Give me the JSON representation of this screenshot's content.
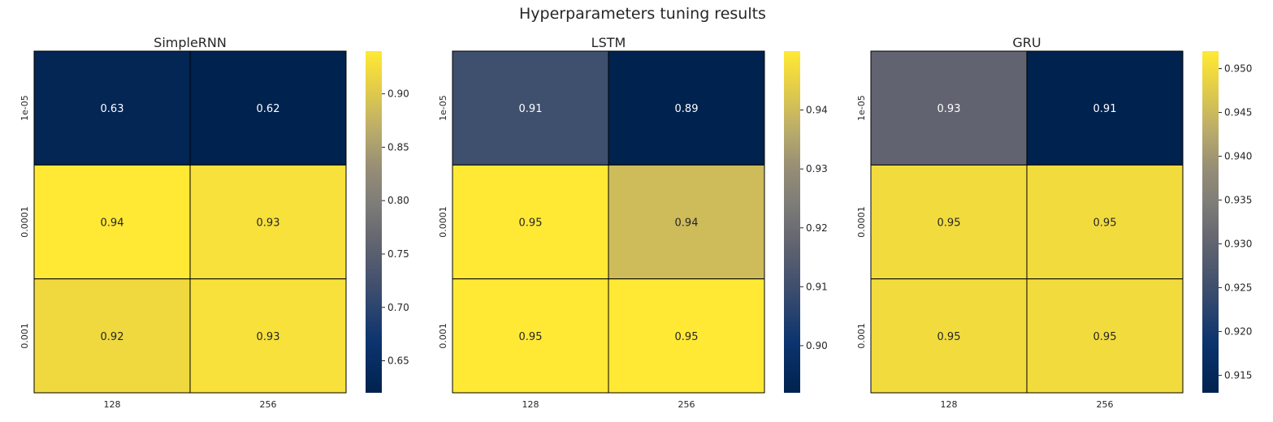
{
  "figure": {
    "title": "Hyperparameters tuning results"
  },
  "chart_data": [
    {
      "type": "heatmap",
      "title": "SimpleRNN",
      "x_categories": [
        "128",
        "256"
      ],
      "y_categories": [
        "1e-05",
        "0.0001",
        "0.001"
      ],
      "values": [
        [
          0.63,
          0.62
        ],
        [
          0.94,
          0.93
        ],
        [
          0.92,
          0.93
        ]
      ],
      "colormap": "cividis",
      "colorbar": {
        "min": 0.62,
        "max": 0.94,
        "ticks": [
          "0.65",
          "0.70",
          "0.75",
          "0.80",
          "0.85",
          "0.90"
        ]
      },
      "grid": true
    },
    {
      "type": "heatmap",
      "title": "LSTM",
      "x_categories": [
        "128",
        "256"
      ],
      "y_categories": [
        "1e-05",
        "0.0001",
        "0.001"
      ],
      "values": [
        [
          0.91,
          0.89
        ],
        [
          0.95,
          0.94
        ],
        [
          0.95,
          0.95
        ]
      ],
      "colormap": "cividis",
      "colorbar": {
        "min": 0.892,
        "max": 0.95,
        "ticks": [
          "0.90",
          "0.91",
          "0.92",
          "0.93",
          "0.94"
        ]
      },
      "grid": true
    },
    {
      "type": "heatmap",
      "title": "GRU",
      "x_categories": [
        "128",
        "256"
      ],
      "y_categories": [
        "1e-05",
        "0.0001",
        "0.001"
      ],
      "values": [
        [
          0.93,
          0.91
        ],
        [
          0.95,
          0.95
        ],
        [
          0.95,
          0.95
        ]
      ],
      "colormap": "cividis",
      "colorbar": {
        "min": 0.913,
        "max": 0.952,
        "ticks": [
          "0.915",
          "0.920",
          "0.925",
          "0.930",
          "0.935",
          "0.940",
          "0.945",
          "0.950"
        ]
      },
      "grid": true
    }
  ]
}
